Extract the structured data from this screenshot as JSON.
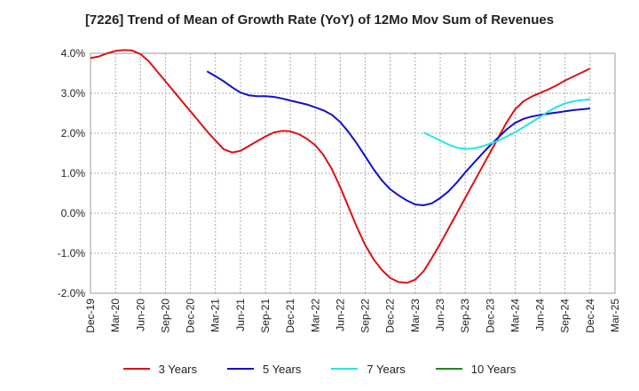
{
  "chart_data": {
    "type": "line",
    "title": "[7226]  Trend of Mean of Growth Rate (YoY) of 12Mo Mov Sum of Revenues",
    "xlabel": "",
    "ylabel": "",
    "ylim": [
      -2.0,
      4.0
    ],
    "y_ticks": [
      -2.0,
      -1.0,
      0.0,
      1.0,
      2.0,
      3.0,
      4.0
    ],
    "y_tick_labels": [
      "-2.0%",
      "-1.0%",
      "0.0%",
      "1.0%",
      "2.0%",
      "3.0%",
      "4.0%"
    ],
    "x_tick_labels": [
      "Dec-19",
      "Mar-20",
      "Jun-20",
      "Sep-20",
      "Dec-20",
      "Mar-21",
      "Jun-21",
      "Sep-21",
      "Dec-21",
      "Mar-22",
      "Jun-22",
      "Sep-22",
      "Dec-22",
      "Mar-23",
      "Jun-23",
      "Sep-23",
      "Dec-23",
      "Mar-24",
      "Jun-24",
      "Sep-24",
      "Dec-24",
      "Mar-25"
    ],
    "x_index_note": "x values are month offsets from Dec-19 (0) to Mar-25 (63)",
    "xlim": [
      0,
      63
    ],
    "grid": true,
    "legend_position": "bottom",
    "series": [
      {
        "name": "3 Years",
        "color": "#dd1111",
        "x": [
          0,
          1,
          2,
          3,
          4,
          5,
          6,
          7,
          8,
          9,
          10,
          11,
          12,
          13,
          14,
          15,
          16,
          17,
          18,
          19,
          20,
          21,
          22,
          23,
          24,
          25,
          26,
          27,
          28,
          29,
          30,
          31,
          32,
          33,
          34,
          35,
          36,
          37,
          38,
          39,
          40,
          41,
          42,
          43,
          44,
          45,
          46,
          47,
          48,
          49,
          50,
          51,
          52,
          53,
          54,
          55,
          56,
          57,
          58,
          59,
          60
        ],
        "values": [
          3.88,
          3.92,
          4.0,
          4.06,
          4.08,
          4.07,
          3.98,
          3.8,
          3.55,
          3.3,
          3.05,
          2.8,
          2.55,
          2.3,
          2.05,
          1.82,
          1.6,
          1.52,
          1.56,
          1.68,
          1.8,
          1.92,
          2.02,
          2.06,
          2.05,
          1.98,
          1.86,
          1.7,
          1.45,
          1.1,
          0.65,
          0.15,
          -0.35,
          -0.8,
          -1.15,
          -1.42,
          -1.62,
          -1.72,
          -1.74,
          -1.66,
          -1.45,
          -1.12,
          -0.76,
          -0.38,
          0.0,
          0.38,
          0.76,
          1.14,
          1.52,
          1.9,
          2.28,
          2.6,
          2.8,
          2.92,
          3.01,
          3.1,
          3.2,
          3.32,
          3.42,
          3.52,
          3.62
        ]
      },
      {
        "name": "5 Years",
        "color": "#1111cc",
        "x": [
          14,
          15,
          16,
          17,
          18,
          19,
          20,
          21,
          22,
          23,
          24,
          25,
          26,
          27,
          28,
          29,
          30,
          31,
          32,
          33,
          34,
          35,
          36,
          37,
          38,
          39,
          40,
          41,
          42,
          43,
          44,
          45,
          46,
          47,
          48,
          49,
          50,
          51,
          52,
          53,
          54,
          55,
          56,
          57,
          58,
          59,
          60
        ],
        "values": [
          3.55,
          3.43,
          3.3,
          3.15,
          3.02,
          2.95,
          2.93,
          2.93,
          2.91,
          2.87,
          2.82,
          2.77,
          2.72,
          2.65,
          2.57,
          2.46,
          2.28,
          2.03,
          1.74,
          1.42,
          1.1,
          0.82,
          0.6,
          0.45,
          0.32,
          0.22,
          0.2,
          0.25,
          0.38,
          0.55,
          0.77,
          1.02,
          1.25,
          1.48,
          1.7,
          1.9,
          2.1,
          2.26,
          2.36,
          2.42,
          2.46,
          2.49,
          2.52,
          2.55,
          2.58,
          2.6,
          2.62
        ]
      },
      {
        "name": "7 Years",
        "color": "#22e6e6",
        "x": [
          40,
          41,
          42,
          43,
          44,
          45,
          46,
          47,
          48,
          49,
          50,
          51,
          52,
          53,
          54,
          55,
          56,
          57,
          58,
          59,
          60
        ],
        "values": [
          2.02,
          1.92,
          1.82,
          1.72,
          1.64,
          1.61,
          1.62,
          1.67,
          1.74,
          1.82,
          1.92,
          2.03,
          2.15,
          2.28,
          2.41,
          2.55,
          2.66,
          2.75,
          2.8,
          2.83,
          2.85
        ]
      },
      {
        "name": "10 Years",
        "color": "#228822",
        "x": [],
        "values": []
      }
    ]
  }
}
